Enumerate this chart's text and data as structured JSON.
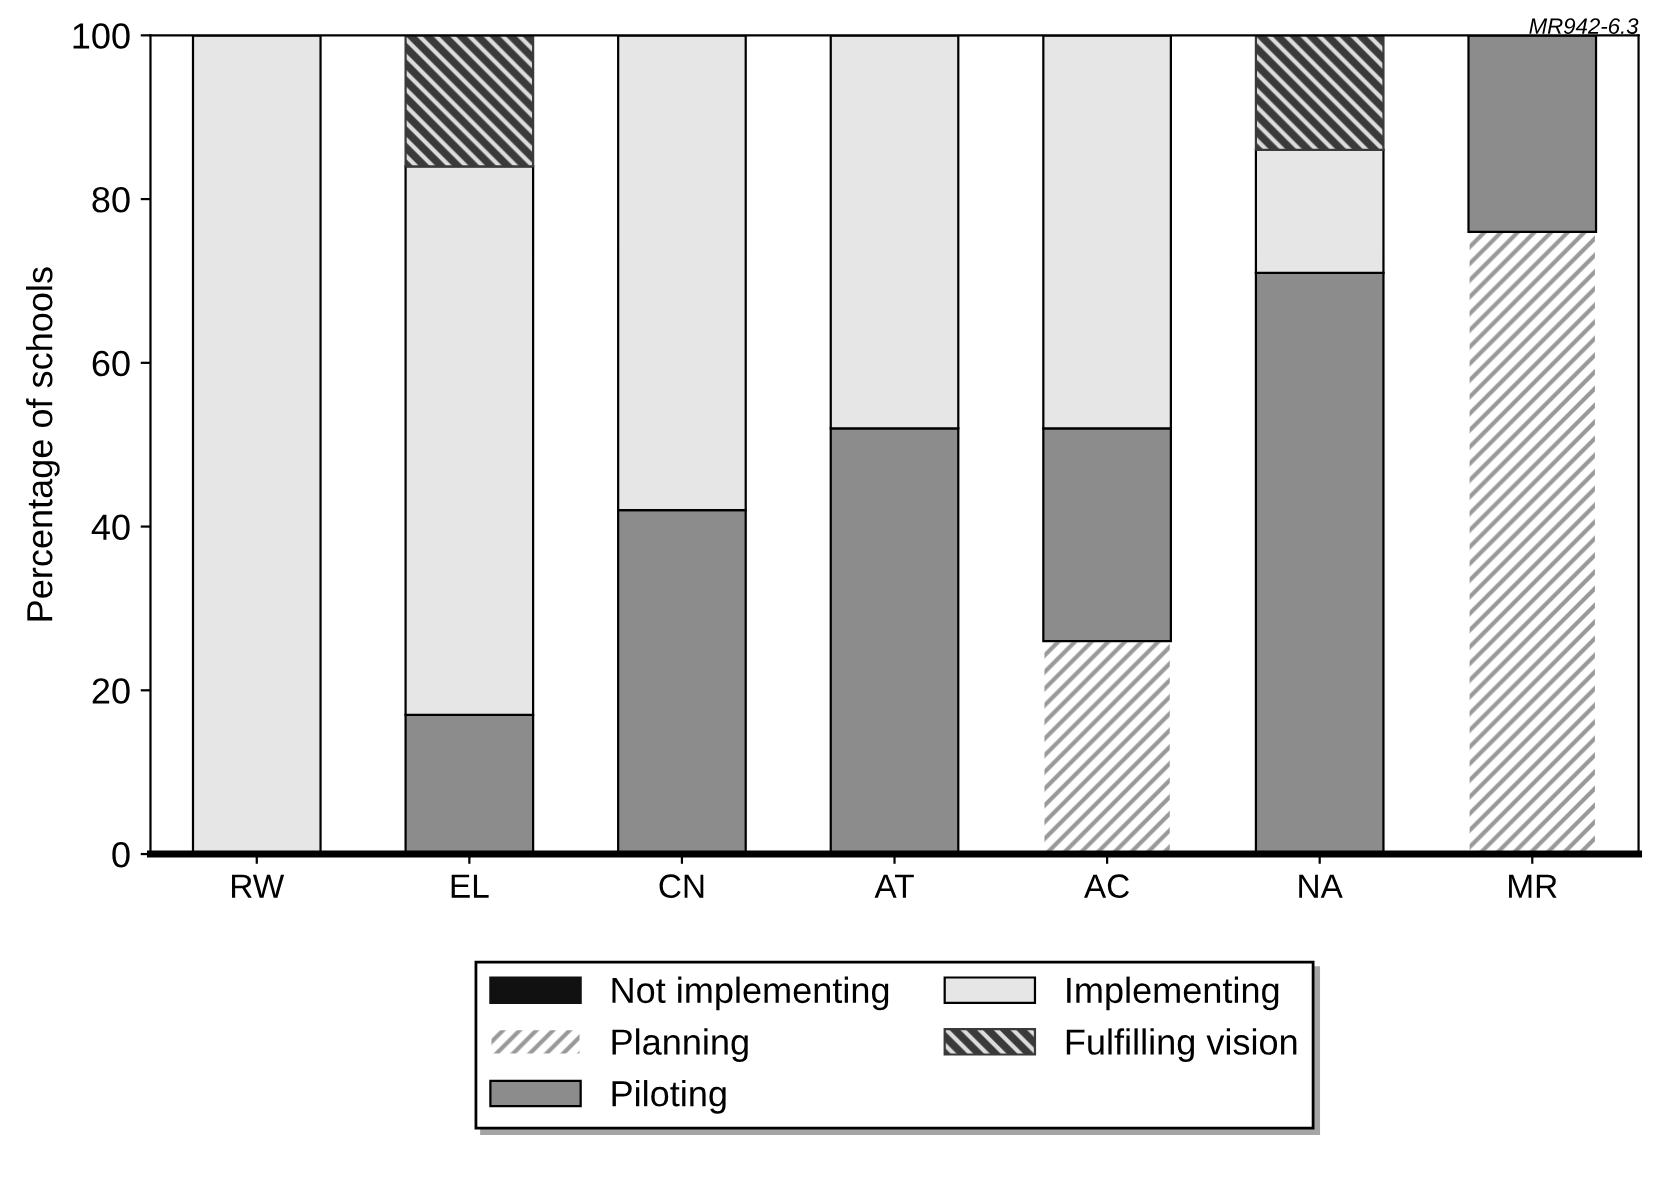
{
  "chart_data": {
    "type": "bar",
    "stacked": true,
    "ylabel": "Percentage of schools",
    "categories": [
      "RW",
      "EL",
      "CN",
      "AT",
      "AC",
      "NA",
      "MR"
    ],
    "series": [
      {
        "name": "Not implementing",
        "color": "#111111",
        "values": [
          0,
          0,
          0,
          0,
          0,
          0,
          0
        ]
      },
      {
        "name": "Planning",
        "color": "#ffffff",
        "values": [
          0,
          0,
          0,
          0,
          26,
          0,
          76
        ]
      },
      {
        "name": "Piloting",
        "color": "#8c8c8c",
        "values": [
          0,
          17,
          42,
          52,
          26,
          71,
          24
        ]
      },
      {
        "name": "Implementing",
        "color": "#e6e6e6",
        "values": [
          100,
          67,
          58,
          48,
          48,
          15,
          0
        ]
      },
      {
        "name": "Fulfilling vision",
        "color": "#3a3a3a",
        "values": [
          0,
          16,
          0,
          0,
          0,
          14,
          0
        ]
      }
    ],
    "ylim": [
      0,
      100
    ],
    "yticks": [
      0,
      20,
      40,
      60,
      80,
      100
    ],
    "grid": false,
    "legend": "bottom",
    "annotations": [
      "MR942-6.3"
    ]
  }
}
